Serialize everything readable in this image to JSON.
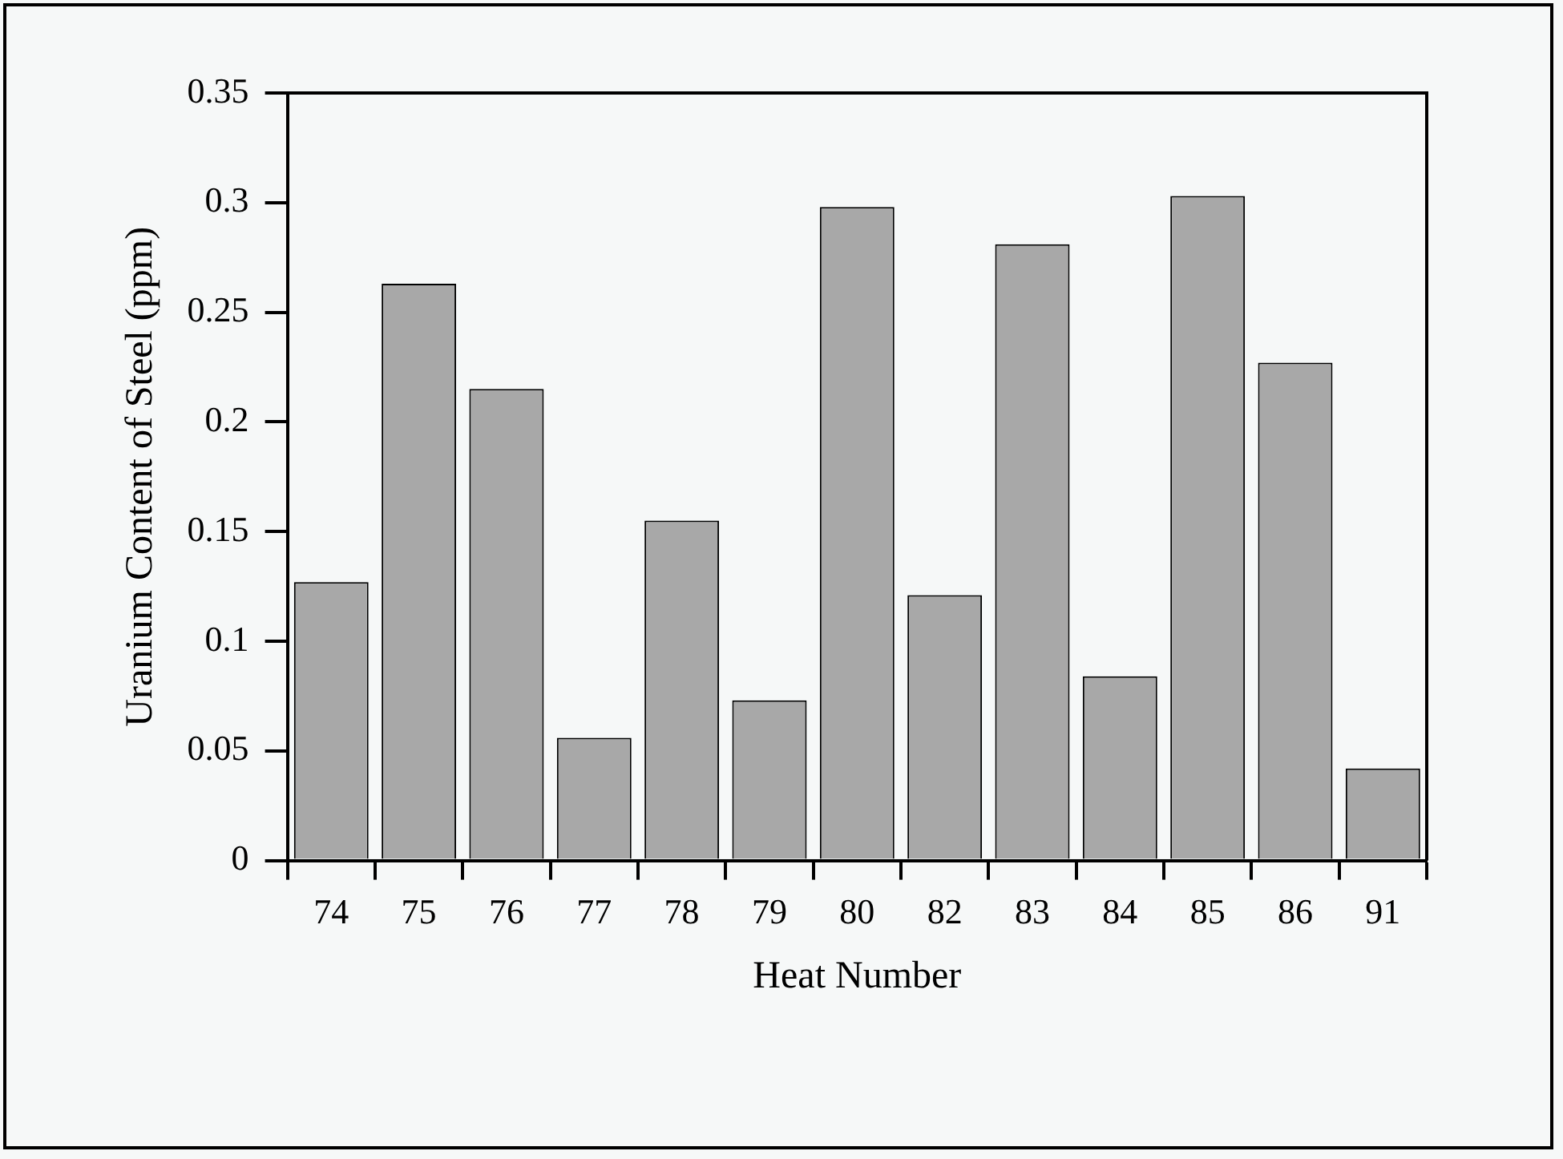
{
  "chart_data": {
    "type": "bar",
    "xlabel": "Heat Number",
    "ylabel": "Uranium Content of Steel (ppm)",
    "categories": [
      "74",
      "75",
      "76",
      "77",
      "78",
      "79",
      "80",
      "82",
      "83",
      "84",
      "85",
      "86",
      "91"
    ],
    "values": [
      0.127,
      0.263,
      0.215,
      0.056,
      0.155,
      0.073,
      0.298,
      0.121,
      0.281,
      0.084,
      0.303,
      0.227,
      0.042
    ],
    "color": "#a8a8a8",
    "ylim": [
      0,
      0.35
    ],
    "yticks": [
      0,
      0.05,
      0.1,
      0.15,
      0.2,
      0.25,
      0.3,
      0.35
    ],
    "grid": false,
    "legend": false
  }
}
